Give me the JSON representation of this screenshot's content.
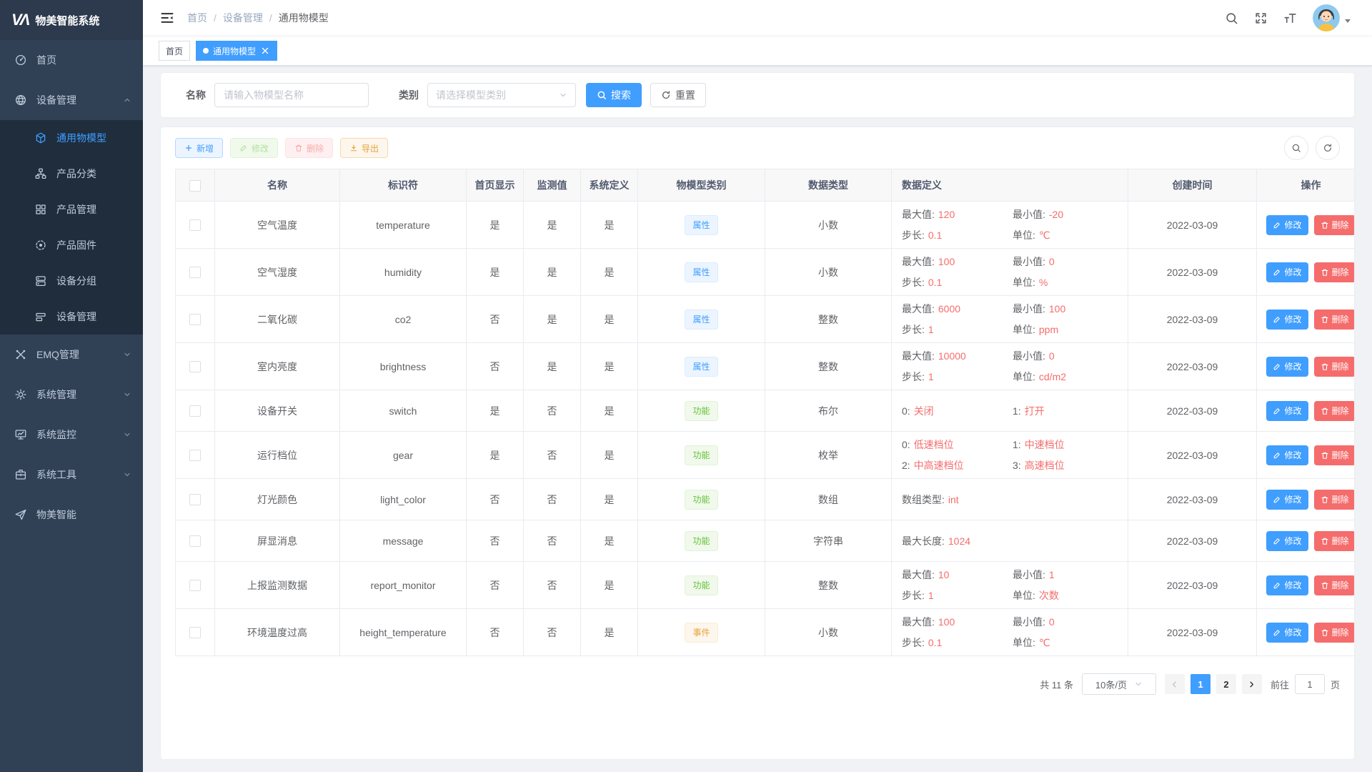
{
  "app": {
    "logo_text": "VΛ",
    "title": "物美智能系统"
  },
  "sidebar": {
    "items": [
      {
        "key": "home",
        "icon": "dashboard-icon",
        "label": "首页"
      },
      {
        "key": "device-management",
        "icon": "sphere-icon",
        "label": "设备管理",
        "expanded": true,
        "children": [
          {
            "key": "common-model",
            "icon": "cube-icon",
            "label": "通用物模型",
            "active": true
          },
          {
            "key": "product-category",
            "icon": "sitemap-icon",
            "label": "产品分类"
          },
          {
            "key": "product-management",
            "icon": "grid-icon",
            "label": "产品管理"
          },
          {
            "key": "product-firmware",
            "icon": "target-icon",
            "label": "产品固件"
          },
          {
            "key": "device-group",
            "icon": "server-icon",
            "label": "设备分组"
          },
          {
            "key": "device-manage",
            "icon": "bars-icon",
            "label": "设备管理"
          }
        ]
      },
      {
        "key": "emq-management",
        "icon": "nodes-icon",
        "label": "EMQ管理",
        "chevron": true
      },
      {
        "key": "system-management",
        "icon": "gear-icon",
        "label": "系统管理",
        "chevron": true
      },
      {
        "key": "system-monitor",
        "icon": "monitor-icon",
        "label": "系统监控",
        "chevron": true
      },
      {
        "key": "system-tools",
        "icon": "toolbox-icon",
        "label": "系统工具",
        "chevron": true
      },
      {
        "key": "wumei-smart",
        "icon": "paper-plane-icon",
        "label": "物美智能"
      }
    ]
  },
  "header": {
    "breadcrumb": [
      "首页",
      "设备管理",
      "通用物模型"
    ],
    "separator": "/"
  },
  "tabs": [
    {
      "label": "首页",
      "active": false,
      "closable": false
    },
    {
      "label": "通用物模型",
      "active": true,
      "closable": true
    }
  ],
  "filters": {
    "name_label": "名称",
    "name_placeholder": "请输入物模型名称",
    "category_label": "类别",
    "category_placeholder": "请选择模型类别",
    "search_label": "搜索",
    "reset_label": "重置"
  },
  "toolbar": {
    "add": "新增",
    "edit": "修改",
    "delete": "删除",
    "export": "导出"
  },
  "table": {
    "columns": [
      "名称",
      "标识符",
      "首页显示",
      "监测值",
      "系统定义",
      "物模型类别",
      "数据类型",
      "数据定义",
      "创建时间",
      "操作"
    ],
    "action_edit": "修改",
    "action_delete": "删除",
    "rows": [
      {
        "name": "空气温度",
        "identifier": "temperature",
        "home_display": "是",
        "monitor_value": "是",
        "system_defined": "是",
        "category": {
          "label": "属性",
          "type": "attr"
        },
        "data_type": "小数",
        "data_def": [
          {
            "label": "最大值:",
            "value": "120"
          },
          {
            "label": "最小值:",
            "value": "-20"
          },
          {
            "label": "步长:",
            "value": "0.1"
          },
          {
            "label": "单位:",
            "value": "℃"
          }
        ],
        "created_at": "2022-03-09"
      },
      {
        "name": "空气湿度",
        "identifier": "humidity",
        "home_display": "是",
        "monitor_value": "是",
        "system_defined": "是",
        "category": {
          "label": "属性",
          "type": "attr"
        },
        "data_type": "小数",
        "data_def": [
          {
            "label": "最大值:",
            "value": "100"
          },
          {
            "label": "最小值:",
            "value": "0"
          },
          {
            "label": "步长:",
            "value": "0.1"
          },
          {
            "label": "单位:",
            "value": "%"
          }
        ],
        "created_at": "2022-03-09"
      },
      {
        "name": "二氧化碳",
        "identifier": "co2",
        "home_display": "否",
        "monitor_value": "是",
        "system_defined": "是",
        "category": {
          "label": "属性",
          "type": "attr"
        },
        "data_type": "整数",
        "data_def": [
          {
            "label": "最大值:",
            "value": "6000"
          },
          {
            "label": "最小值:",
            "value": "100"
          },
          {
            "label": "步长:",
            "value": "1"
          },
          {
            "label": "单位:",
            "value": "ppm"
          }
        ],
        "created_at": "2022-03-09"
      },
      {
        "name": "室内亮度",
        "identifier": "brightness",
        "home_display": "否",
        "monitor_value": "是",
        "system_defined": "是",
        "category": {
          "label": "属性",
          "type": "attr"
        },
        "data_type": "整数",
        "data_def": [
          {
            "label": "最大值:",
            "value": "10000"
          },
          {
            "label": "最小值:",
            "value": "0"
          },
          {
            "label": "步长:",
            "value": "1"
          },
          {
            "label": "单位:",
            "value": "cd/m2"
          }
        ],
        "created_at": "2022-03-09"
      },
      {
        "name": "设备开关",
        "identifier": "switch",
        "home_display": "是",
        "monitor_value": "否",
        "system_defined": "是",
        "category": {
          "label": "功能",
          "type": "func"
        },
        "data_type": "布尔",
        "data_def": [
          {
            "label": "0:",
            "value": "关闭"
          },
          {
            "label": "1:",
            "value": "打开"
          }
        ],
        "created_at": "2022-03-09"
      },
      {
        "name": "运行档位",
        "identifier": "gear",
        "home_display": "是",
        "monitor_value": "否",
        "system_defined": "是",
        "category": {
          "label": "功能",
          "type": "func"
        },
        "data_type": "枚举",
        "data_def": [
          {
            "label": "0:",
            "value": "低速档位"
          },
          {
            "label": "1:",
            "value": "中速档位"
          },
          {
            "label": "2:",
            "value": "中高速档位"
          },
          {
            "label": "3:",
            "value": "高速档位"
          }
        ],
        "created_at": "2022-03-09"
      },
      {
        "name": "灯光颜色",
        "identifier": "light_color",
        "home_display": "否",
        "monitor_value": "否",
        "system_defined": "是",
        "category": {
          "label": "功能",
          "type": "func"
        },
        "data_type": "数组",
        "data_def": [
          {
            "label": "数组类型:",
            "value": "int"
          }
        ],
        "created_at": "2022-03-09"
      },
      {
        "name": "屏显消息",
        "identifier": "message",
        "home_display": "否",
        "monitor_value": "否",
        "system_defined": "是",
        "category": {
          "label": "功能",
          "type": "func"
        },
        "data_type": "字符串",
        "data_def": [
          {
            "label": "最大长度:",
            "value": "1024"
          }
        ],
        "created_at": "2022-03-09"
      },
      {
        "name": "上报监测数据",
        "identifier": "report_monitor",
        "home_display": "否",
        "monitor_value": "否",
        "system_defined": "是",
        "category": {
          "label": "功能",
          "type": "func"
        },
        "data_type": "整数",
        "data_def": [
          {
            "label": "最大值:",
            "value": "10"
          },
          {
            "label": "最小值:",
            "value": "1"
          },
          {
            "label": "步长:",
            "value": "1"
          },
          {
            "label": "单位:",
            "value": "次数"
          }
        ],
        "created_at": "2022-03-09"
      },
      {
        "name": "环境温度过高",
        "identifier": "height_temperature",
        "home_display": "否",
        "monitor_value": "否",
        "system_defined": "是",
        "category": {
          "label": "事件",
          "type": "event"
        },
        "data_type": "小数",
        "data_def": [
          {
            "label": "最大值:",
            "value": "100"
          },
          {
            "label": "最小值:",
            "value": "0"
          },
          {
            "label": "步长:",
            "value": "0.1"
          },
          {
            "label": "单位:",
            "value": "℃"
          }
        ],
        "created_at": "2022-03-09"
      }
    ]
  },
  "pagination": {
    "total_text": "共 11 条",
    "page_size": "10条/页",
    "pages": [
      "1",
      "2"
    ],
    "active_page": "1",
    "goto_label": "前往",
    "goto_value": "1",
    "goto_suffix": "页"
  },
  "colors": {
    "accent": "#409eff",
    "danger": "#f56c6c",
    "success": "#67c23a",
    "warning": "#e6a23c",
    "sidebar_bg": "#304156",
    "submenu_bg": "#1f2d3d"
  }
}
